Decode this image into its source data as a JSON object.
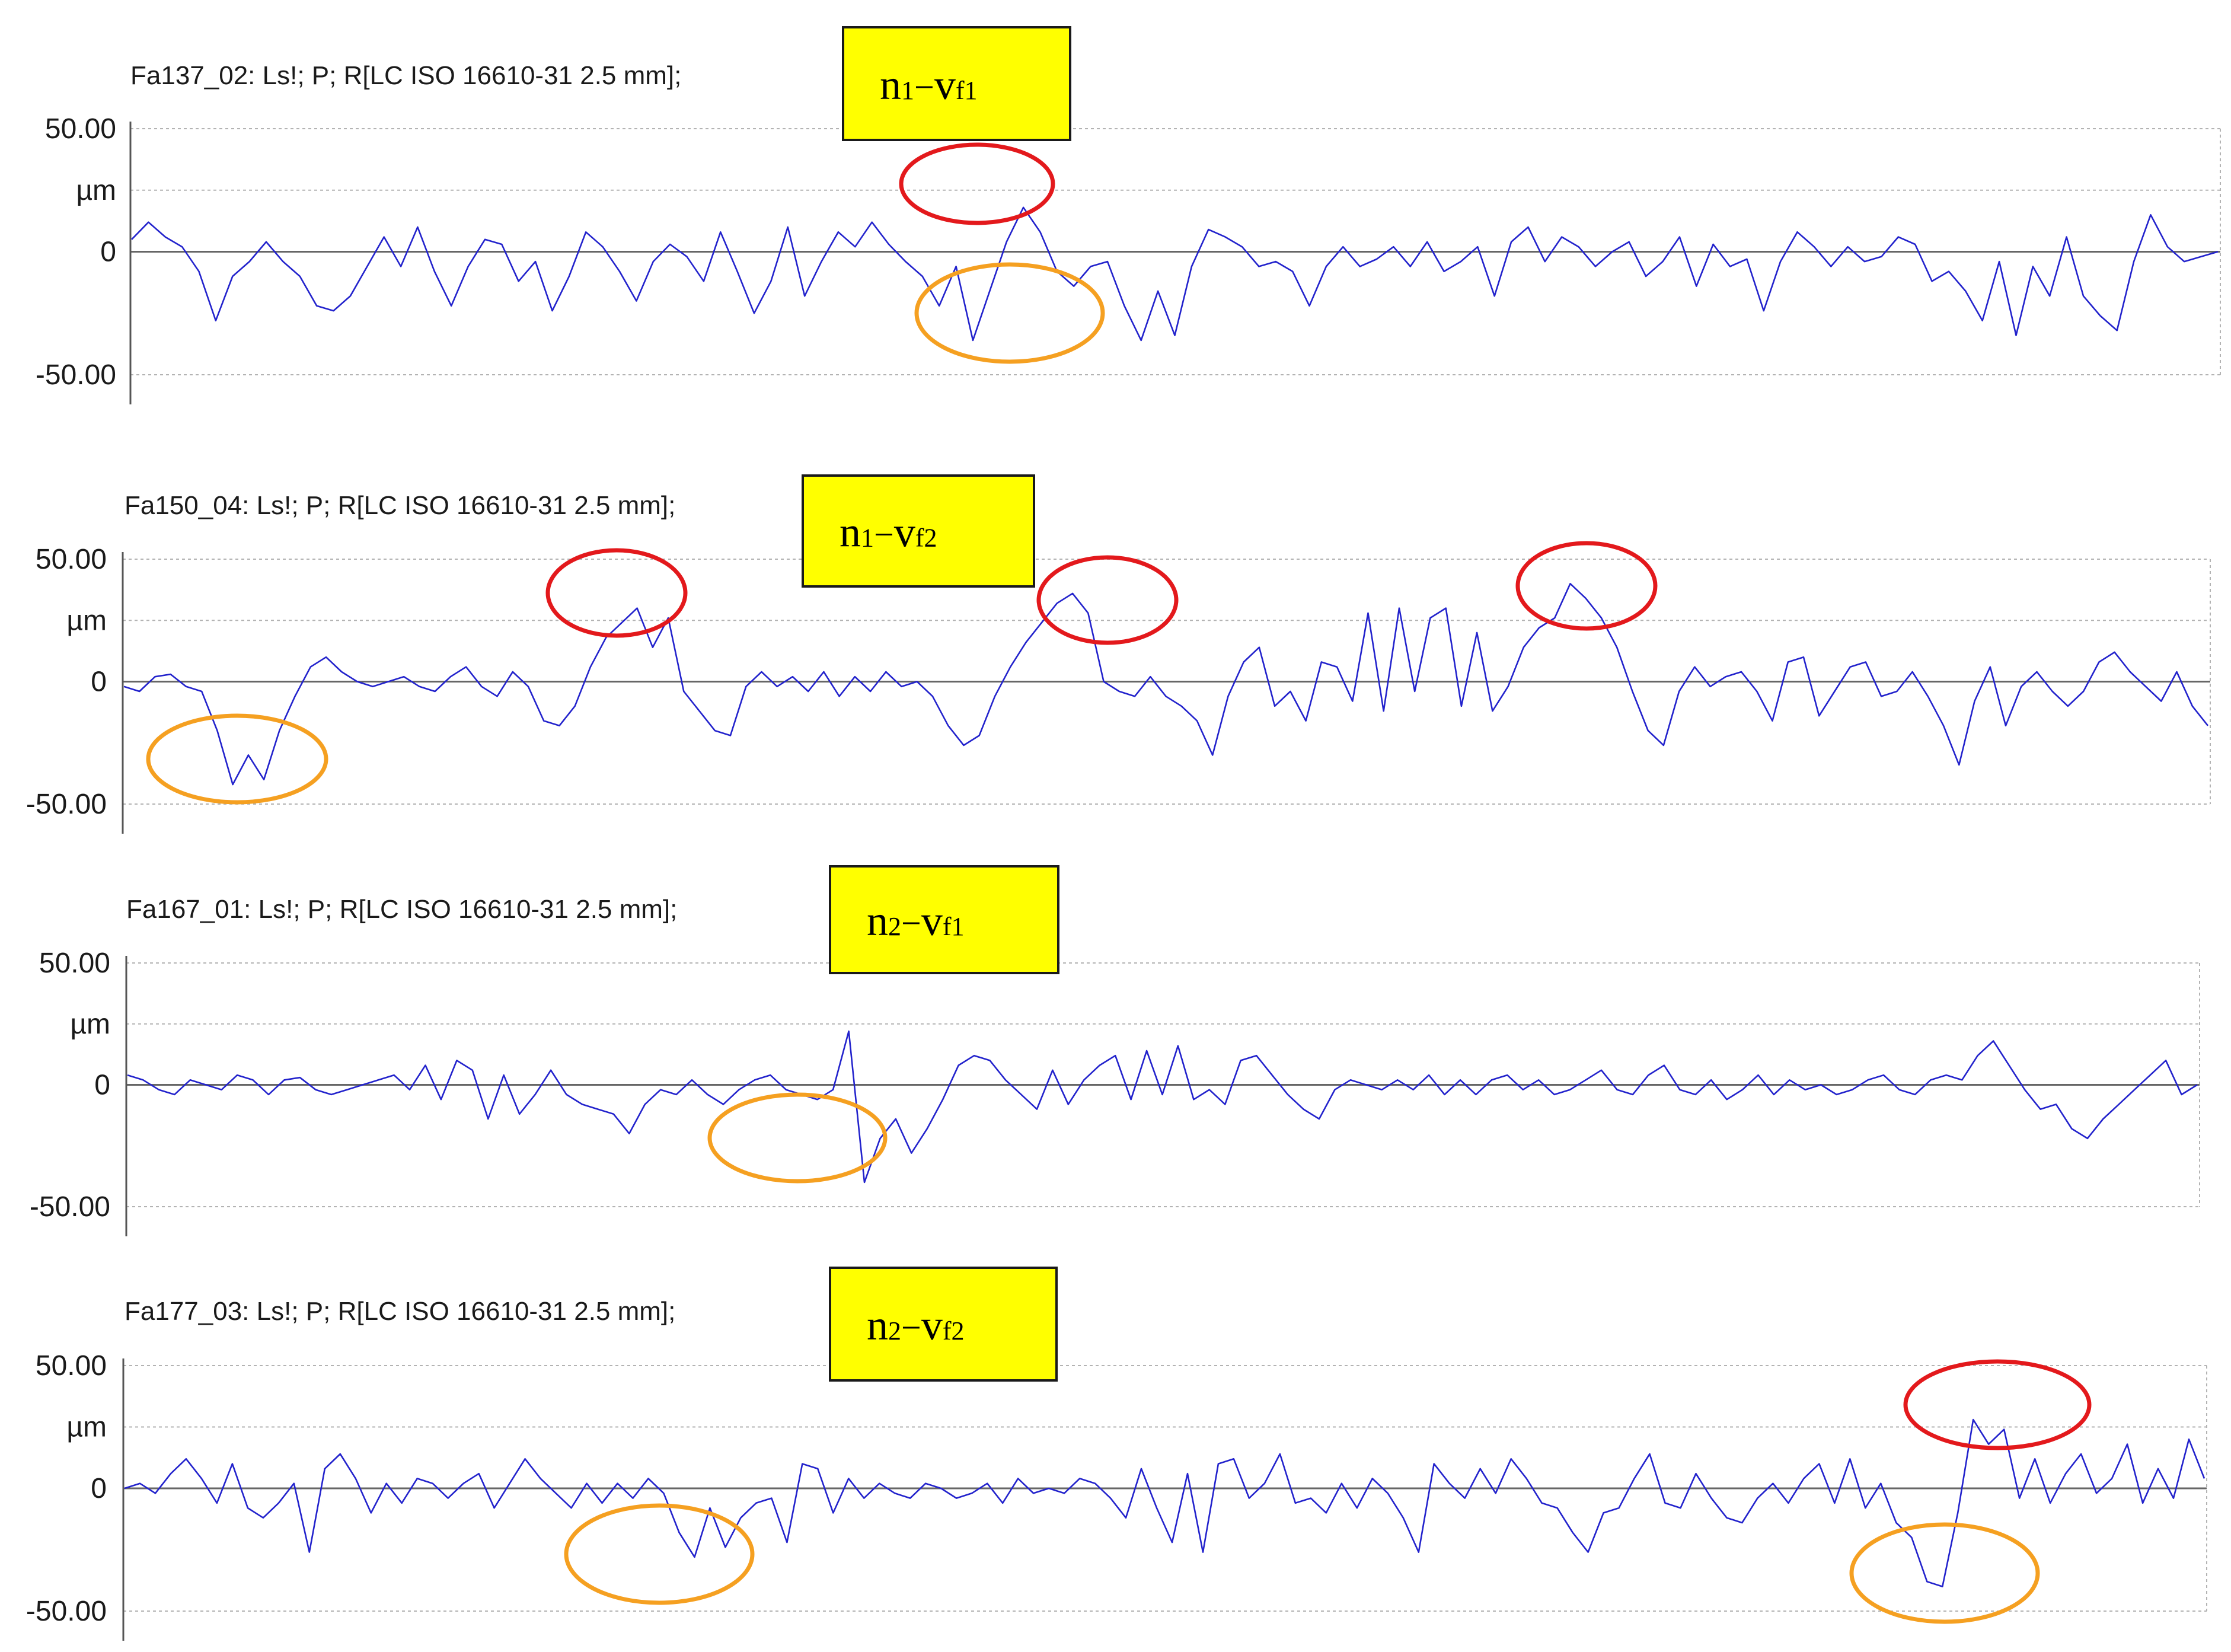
{
  "chart_data": [
    {
      "type": "line",
      "title": "Fa137_02: Ls!; P; R[LC ISO 16610-31 2.5 mm];",
      "label": {
        "main": "n",
        "sub1": "1",
        "dash": "−",
        "v": "v",
        "sub2": "f1"
      },
      "ytick_labels": [
        "50.00",
        "µm",
        "0",
        "-50.00"
      ],
      "ylim": [
        -50,
        50
      ],
      "grid": true,
      "line_color": "#2222cc",
      "series": [
        {
          "values": [
            5,
            12,
            6,
            2,
            -8,
            -28,
            -10,
            -4,
            4,
            -4,
            -10,
            -22,
            -24,
            -18,
            -6,
            6,
            -6,
            10,
            -8,
            -22,
            -6,
            5,
            3,
            -12,
            -4,
            -24,
            -10,
            8,
            2,
            -8,
            -20,
            -4,
            3,
            -2,
            -12,
            8,
            -8,
            -25,
            -12,
            10,
            -18,
            -4,
            8,
            2,
            12,
            3,
            -4,
            -10,
            -22,
            -6,
            -36,
            -16,
            4,
            18,
            8,
            -8,
            -14,
            -6,
            -4,
            -22,
            -36,
            -16,
            -34,
            -6,
            9,
            6,
            2,
            -6,
            -4,
            -8,
            -22,
            -6,
            2,
            -6,
            -3,
            2,
            -6,
            4,
            -8,
            -4,
            2,
            -18,
            4,
            10,
            -4,
            6,
            2,
            -6,
            0,
            4,
            -10,
            -4,
            6,
            -14,
            3,
            -6,
            -3,
            -24,
            -4,
            8,
            2,
            -6,
            2,
            -4,
            -2,
            6,
            3,
            -12,
            -8,
            -16,
            -28,
            -4,
            -34,
            -6,
            -18,
            6,
            -18,
            -26,
            -32,
            -4,
            15,
            2,
            -4,
            -2,
            0
          ]
        }
      ],
      "annotations": [
        {
          "shape": "ellipse",
          "color": "red",
          "near_value": 18
        },
        {
          "shape": "ellipse",
          "color": "orange",
          "near_value": -36
        }
      ]
    },
    {
      "type": "line",
      "title": "Fa150_04: Ls!; P; R[LC ISO 16610-31 2.5 mm];",
      "label": {
        "main": "n",
        "sub1": "1",
        "dash": "−",
        "v": "v",
        "sub2": "f2"
      },
      "ytick_labels": [
        "50.00",
        "µm",
        "0",
        "-50.00"
      ],
      "ylim": [
        -50,
        50
      ],
      "grid": true,
      "line_color": "#2222cc",
      "series": [
        {
          "values": [
            -2,
            -4,
            2,
            3,
            -2,
            -4,
            -20,
            -42,
            -30,
            -40,
            -20,
            -6,
            6,
            10,
            4,
            0,
            -2,
            0,
            2,
            -2,
            -4,
            2,
            6,
            -2,
            -6,
            4,
            -2,
            -16,
            -18,
            -10,
            6,
            18,
            24,
            30,
            14,
            26,
            -4,
            -12,
            -20,
            -22,
            -2,
            4,
            -2,
            2,
            -4,
            4,
            -6,
            2,
            -4,
            4,
            -2,
            0,
            -6,
            -18,
            -26,
            -22,
            -6,
            6,
            16,
            24,
            32,
            36,
            28,
            0,
            -4,
            -6,
            2,
            -6,
            -10,
            -16,
            -30,
            -6,
            8,
            14,
            -10,
            -4,
            -16,
            8,
            6,
            -8,
            28,
            -12,
            30,
            -4,
            26,
            30,
            -10,
            20,
            -12,
            -2,
            14,
            22,
            26,
            40,
            34,
            26,
            14,
            -4,
            -20,
            -26,
            -4,
            6,
            -2,
            2,
            4,
            -4,
            -16,
            8,
            10,
            -14,
            -4,
            6,
            8,
            -6,
            -4,
            4,
            -6,
            -18,
            -34,
            -8,
            6,
            -18,
            -2,
            4,
            -4,
            -10,
            -4,
            8,
            12,
            4,
            -2,
            -8,
            4,
            -10,
            -18
          ]
        }
      ],
      "annotations": [
        {
          "shape": "ellipse",
          "color": "red",
          "near_value": 30
        },
        {
          "shape": "ellipse",
          "color": "red",
          "near_value": 36
        },
        {
          "shape": "ellipse",
          "color": "red",
          "near_value": 40
        },
        {
          "shape": "ellipse",
          "color": "orange",
          "near_value": -42
        }
      ]
    },
    {
      "type": "line",
      "title": "Fa167_01: Ls!; P; R[LC ISO 16610-31 2.5 mm];",
      "label": {
        "main": "n",
        "sub1": "2",
        "dash": "−",
        "v": "v",
        "sub2": "f1"
      },
      "ytick_labels": [
        "50.00",
        "µm",
        "0",
        "-50.00"
      ],
      "ylim": [
        -50,
        50
      ],
      "grid": true,
      "line_color": "#2222cc",
      "series": [
        {
          "values": [
            4,
            2,
            -2,
            -4,
            2,
            0,
            -2,
            4,
            2,
            -4,
            2,
            3,
            -2,
            -4,
            -2,
            0,
            2,
            4,
            -2,
            8,
            -6,
            10,
            6,
            -14,
            4,
            -12,
            -4,
            6,
            -4,
            -8,
            -10,
            -12,
            -20,
            -8,
            -2,
            -4,
            2,
            -4,
            -8,
            -2,
            2,
            4,
            -2,
            -4,
            -6,
            -2,
            22,
            -40,
            -22,
            -14,
            -28,
            -18,
            -6,
            8,
            12,
            10,
            2,
            -4,
            -10,
            6,
            -8,
            2,
            8,
            12,
            -6,
            14,
            -4,
            16,
            -6,
            -2,
            -8,
            10,
            12,
            4,
            -4,
            -10,
            -14,
            -2,
            2,
            0,
            -2,
            2,
            -2,
            4,
            -4,
            2,
            -4,
            2,
            4,
            -2,
            2,
            -4,
            -2,
            2,
            6,
            -2,
            -4,
            4,
            8,
            -2,
            -4,
            2,
            -6,
            -2,
            4,
            -4,
            2,
            -2,
            0,
            -4,
            -2,
            2,
            4,
            -2,
            -4,
            2,
            4,
            2,
            12,
            18,
            8,
            -2,
            -10,
            -8,
            -18,
            -22,
            -14,
            -8,
            -2,
            4,
            10,
            -4,
            0
          ]
        }
      ],
      "annotations": [
        {
          "shape": "ellipse",
          "color": "orange",
          "near_value": -40
        }
      ]
    },
    {
      "type": "line",
      "title": "Fa177_03: Ls!; P; R[LC ISO 16610-31 2.5 mm];",
      "label": {
        "main": "n",
        "sub1": "2",
        "dash": "−",
        "v": "v",
        "sub2": "f2"
      },
      "ytick_labels": [
        "50.00",
        "µm",
        "0",
        "-50.00"
      ],
      "ylim": [
        -50,
        50
      ],
      "grid": true,
      "line_color": "#2222cc",
      "series": [
        {
          "values": [
            0,
            2,
            -2,
            6,
            12,
            4,
            -6,
            10,
            -8,
            -12,
            -6,
            2,
            -26,
            8,
            14,
            4,
            -10,
            2,
            -6,
            4,
            2,
            -4,
            2,
            6,
            -8,
            2,
            12,
            4,
            -2,
            -8,
            2,
            -6,
            2,
            -4,
            4,
            -2,
            -18,
            -28,
            -8,
            -24,
            -12,
            -6,
            -4,
            -22,
            10,
            8,
            -10,
            4,
            -4,
            2,
            -2,
            -4,
            2,
            0,
            -4,
            -2,
            2,
            -6,
            4,
            -2,
            0,
            -2,
            4,
            2,
            -4,
            -12,
            8,
            -8,
            -22,
            6,
            -26,
            10,
            12,
            -4,
            2,
            14,
            -6,
            -4,
            -10,
            2,
            -8,
            4,
            -2,
            -12,
            -26,
            10,
            2,
            -4,
            8,
            -2,
            12,
            4,
            -6,
            -8,
            -18,
            -26,
            -10,
            -8,
            4,
            14,
            -6,
            -8,
            6,
            -4,
            -12,
            -14,
            -4,
            2,
            -6,
            4,
            10,
            -6,
            12,
            -8,
            2,
            -14,
            -20,
            -38,
            -40,
            -10,
            28,
            18,
            24,
            -4,
            12,
            -6,
            6,
            14,
            -2,
            4,
            18,
            -6,
            8,
            -4,
            20,
            4
          ]
        }
      ],
      "annotations": [
        {
          "shape": "ellipse",
          "color": "red",
          "near_value": 28
        },
        {
          "shape": "ellipse",
          "color": "orange",
          "near_value": -28
        },
        {
          "shape": "ellipse",
          "color": "orange",
          "near_value": -40
        }
      ]
    }
  ]
}
